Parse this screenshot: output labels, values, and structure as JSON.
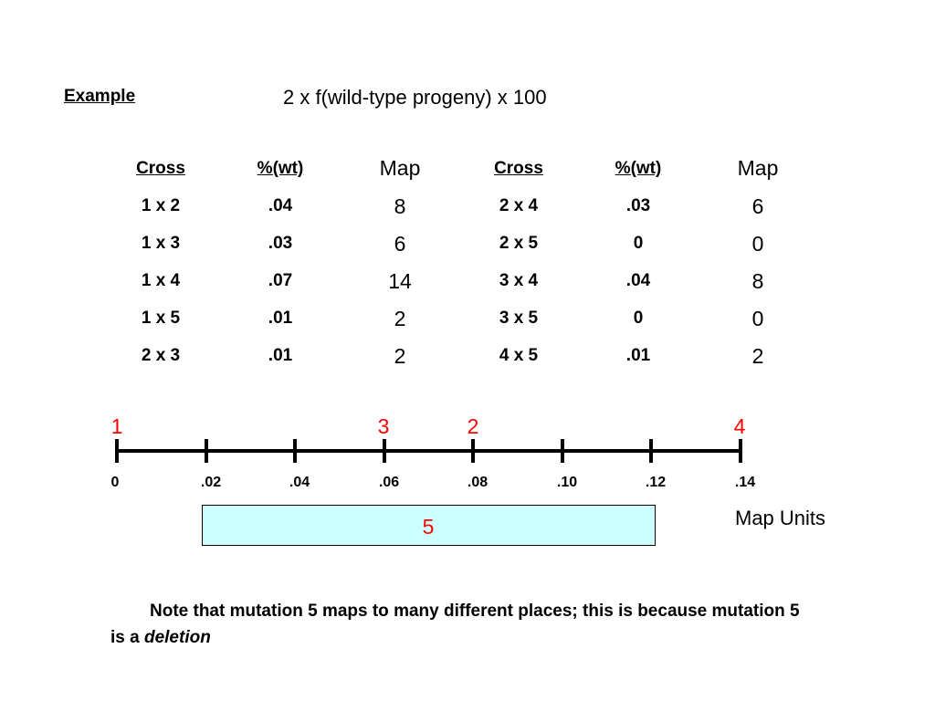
{
  "example_label": "Example",
  "formula": "2 x f(wild-type progeny) x 100",
  "table_headers": [
    "Cross",
    "%(wt)",
    "Map",
    "Cross",
    "%(wt)",
    "Map"
  ],
  "rows": [
    [
      "1 x 2",
      ".04",
      "8",
      "2 x 4",
      ".03",
      "6"
    ],
    [
      "1 x 3",
      ".03",
      "6",
      "2 x 5",
      "0",
      "0"
    ],
    [
      "1 x 4",
      ".07",
      "14",
      "3 x 4",
      ".04",
      "8"
    ],
    [
      "1 x 5",
      ".01",
      "2",
      "3 x 5",
      "0",
      "0"
    ],
    [
      "2 x 3",
      ".01",
      "2",
      "4 x 5",
      ".01",
      "2"
    ]
  ],
  "map": {
    "ticks": [
      "0",
      ".02",
      ".04",
      ".06",
      ".08",
      ".10",
      ".12",
      ".14"
    ],
    "markers": [
      {
        "label": "1",
        "position": 0
      },
      {
        "label": "3",
        "position": 0.06
      },
      {
        "label": "2",
        "position": 0.08
      },
      {
        "label": "4",
        "position": 0.14
      }
    ],
    "marker_color": "#ff0000",
    "units_label": "Map Units",
    "deletion": {
      "label": "5",
      "start": 0.02,
      "end": 0.12,
      "fill_color": "#ccffff"
    }
  },
  "note": {
    "text": "Note that mutation 5 maps to many different places; this is because mutation 5 is a ",
    "emphasis": "deletion"
  }
}
